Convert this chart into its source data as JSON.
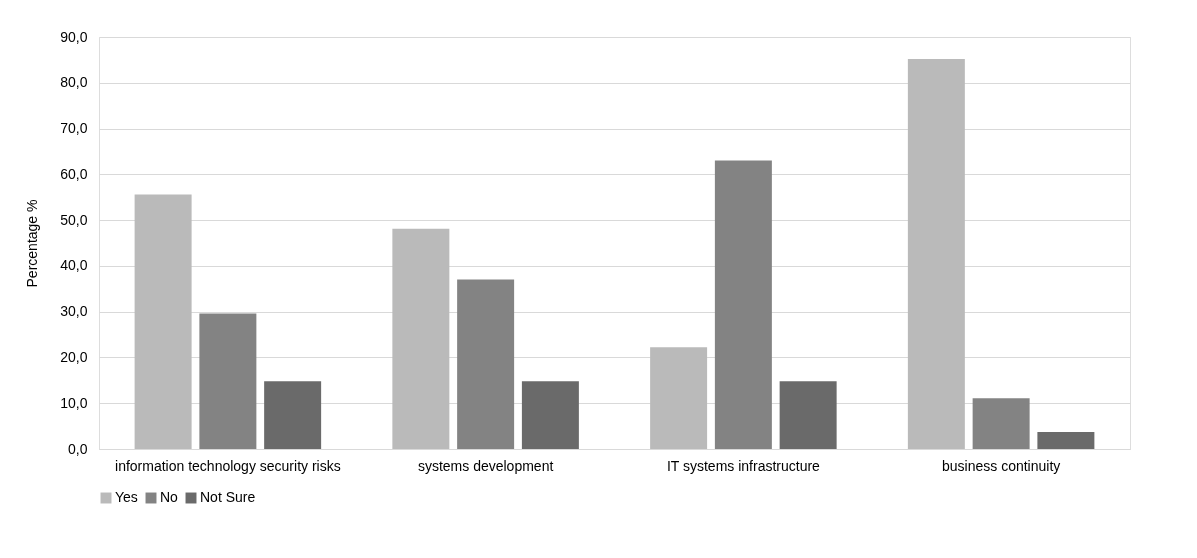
{
  "chart_data": {
    "type": "bar",
    "ylabel": "Percentage %",
    "categories": [
      "information technology security risks",
      "systems development",
      "IT systems infrastructure",
      "business continuity"
    ],
    "series": [
      {
        "name": "Yes",
        "color": "#bababa",
        "values": [
          55.6,
          48.1,
          22.2,
          85.2
        ]
      },
      {
        "name": "No",
        "color": "#838383",
        "values": [
          29.6,
          37.0,
          63.0,
          11.1
        ]
      },
      {
        "name": "Not Sure",
        "color": "#6a6a6a",
        "values": [
          14.8,
          14.8,
          14.8,
          3.7
        ]
      }
    ],
    "ylim": [
      0,
      90
    ],
    "yticks": [
      {
        "value": 0,
        "label": "0,0"
      },
      {
        "value": 10,
        "label": "10,0"
      },
      {
        "value": 20,
        "label": "20,0"
      },
      {
        "value": 30,
        "label": "30,0"
      },
      {
        "value": 40,
        "label": "40,0"
      },
      {
        "value": 50,
        "label": "50,0"
      },
      {
        "value": 60,
        "label": "60,0"
      },
      {
        "value": 70,
        "label": "70,0"
      },
      {
        "value": 80,
        "label": "80,0"
      },
      {
        "value": 90,
        "label": "90,0"
      }
    ],
    "grid": "y",
    "legend": "bottom"
  }
}
